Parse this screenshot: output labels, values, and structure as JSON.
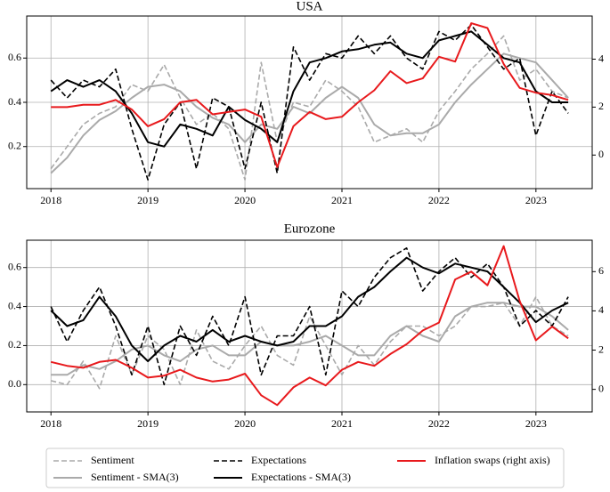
{
  "chart_data": [
    {
      "type": "line",
      "title": "USA",
      "x": [
        2018,
        2018.167,
        2018.333,
        2018.5,
        2018.667,
        2018.833,
        2019,
        2019.167,
        2019.333,
        2019.5,
        2019.667,
        2019.833,
        2020,
        2020.167,
        2020.333,
        2020.5,
        2020.667,
        2020.833,
        2021,
        2021.167,
        2021.333,
        2021.5,
        2021.667,
        2021.833,
        2022,
        2022.167,
        2022.333,
        2022.5,
        2022.667,
        2022.833,
        2023,
        2023.167,
        2023.333
      ],
      "series": [
        {
          "name": "Sentiment",
          "color": "#aaaaaa",
          "linestyle": "dashed",
          "values": [
            0.1,
            0.2,
            0.3,
            0.35,
            0.38,
            0.48,
            0.45,
            0.57,
            0.42,
            0.3,
            0.35,
            0.28,
            0.05,
            0.58,
            0.22,
            0.4,
            0.38,
            0.5,
            0.45,
            0.38,
            0.22,
            0.25,
            0.28,
            0.22,
            0.36,
            0.45,
            0.55,
            0.62,
            0.7,
            0.5,
            0.55,
            0.45,
            0.42
          ]
        },
        {
          "name": "Sentiment - SMA(3)",
          "color": "#aaaaaa",
          "linestyle": "solid",
          "values": [
            0.08,
            0.15,
            0.25,
            0.32,
            0.36,
            0.42,
            0.47,
            0.48,
            0.45,
            0.38,
            0.33,
            0.3,
            0.22,
            0.3,
            0.28,
            0.38,
            0.35,
            0.42,
            0.47,
            0.42,
            0.3,
            0.25,
            0.26,
            0.26,
            0.3,
            0.4,
            0.48,
            0.55,
            0.62,
            0.6,
            0.58,
            0.5,
            0.42
          ]
        },
        {
          "name": "Expectations",
          "color": "#000000",
          "linestyle": "dashed",
          "values": [
            0.5,
            0.42,
            0.5,
            0.47,
            0.55,
            0.28,
            0.05,
            0.3,
            0.4,
            0.1,
            0.42,
            0.38,
            0.1,
            0.4,
            0.08,
            0.65,
            0.5,
            0.62,
            0.6,
            0.7,
            0.62,
            0.7,
            0.6,
            0.55,
            0.72,
            0.68,
            0.75,
            0.65,
            0.55,
            0.6,
            0.25,
            0.45,
            0.35
          ]
        },
        {
          "name": "Expectations - SMA(3)",
          "color": "#000000",
          "linestyle": "solid",
          "values": [
            0.45,
            0.5,
            0.47,
            0.5,
            0.45,
            0.35,
            0.22,
            0.2,
            0.3,
            0.28,
            0.25,
            0.38,
            0.32,
            0.28,
            0.22,
            0.45,
            0.58,
            0.6,
            0.63,
            0.64,
            0.66,
            0.67,
            0.62,
            0.6,
            0.68,
            0.7,
            0.72,
            0.66,
            0.6,
            0.58,
            0.45,
            0.4,
            0.4
          ]
        },
        {
          "name": "Inflation swaps (right axis)",
          "color": "#e8191c",
          "linestyle": "solid",
          "axis": "y2",
          "values": [
            2.0,
            2.0,
            2.1,
            2.1,
            2.3,
            1.9,
            1.2,
            1.5,
            2.2,
            2.3,
            1.7,
            1.8,
            1.9,
            1.6,
            -0.5,
            1.2,
            1.8,
            1.5,
            1.6,
            2.2,
            2.7,
            3.5,
            3.0,
            3.2,
            4.1,
            3.9,
            5.5,
            5.3,
            3.8,
            2.8,
            2.6,
            2.5,
            2.3
          ]
        }
      ],
      "xlim": [
        2017.75,
        2023.58
      ],
      "xticks": [
        2018,
        2019,
        2020,
        2021,
        2022,
        2023
      ],
      "ylim": [
        0.01,
        0.79
      ],
      "yticks": [
        0.2,
        0.4,
        0.6
      ],
      "y2lim": [
        -1.4,
        5.8
      ],
      "y2ticks": [
        0,
        2,
        4
      ],
      "grid": true
    },
    {
      "type": "line",
      "title": "Eurozone",
      "x": [
        2018,
        2018.167,
        2018.333,
        2018.5,
        2018.667,
        2018.833,
        2019,
        2019.167,
        2019.333,
        2019.5,
        2019.667,
        2019.833,
        2020,
        2020.167,
        2020.333,
        2020.5,
        2020.667,
        2020.833,
        2021,
        2021.167,
        2021.333,
        2021.5,
        2021.667,
        2021.833,
        2022,
        2022.167,
        2022.333,
        2022.5,
        2022.667,
        2022.833,
        2023,
        2023.167,
        2023.333
      ],
      "series": [
        {
          "name": "Sentiment",
          "color": "#aaaaaa",
          "linestyle": "dashed",
          "values": [
            0.02,
            0.0,
            0.12,
            -0.02,
            0.25,
            0.05,
            0.25,
            0.18,
            0.0,
            0.28,
            0.12,
            0.08,
            0.2,
            0.3,
            0.15,
            0.1,
            0.35,
            0.2,
            0.05,
            0.2,
            0.1,
            0.22,
            0.3,
            0.3,
            0.25,
            0.3,
            0.4,
            0.4,
            0.42,
            0.3,
            0.45,
            0.3,
            0.25
          ]
        },
        {
          "name": "Sentiment - SMA(3)",
          "color": "#aaaaaa",
          "linestyle": "solid",
          "values": [
            0.05,
            0.05,
            0.1,
            0.08,
            0.12,
            0.18,
            0.2,
            0.15,
            0.12,
            0.18,
            0.2,
            0.15,
            0.15,
            0.22,
            0.2,
            0.2,
            0.22,
            0.25,
            0.2,
            0.15,
            0.15,
            0.25,
            0.3,
            0.25,
            0.22,
            0.35,
            0.4,
            0.42,
            0.42,
            0.4,
            0.4,
            0.35,
            0.28
          ]
        },
        {
          "name": "Expectations",
          "color": "#000000",
          "linestyle": "dashed",
          "values": [
            0.4,
            0.22,
            0.38,
            0.5,
            0.3,
            0.05,
            0.3,
            0.0,
            0.3,
            0.15,
            0.35,
            0.2,
            0.45,
            0.05,
            0.25,
            0.25,
            0.4,
            0.05,
            0.48,
            0.4,
            0.55,
            0.65,
            0.7,
            0.48,
            0.58,
            0.65,
            0.55,
            0.62,
            0.5,
            0.3,
            0.38,
            0.3,
            0.45
          ]
        },
        {
          "name": "Expectations - SMA(3)",
          "color": "#000000",
          "linestyle": "solid",
          "values": [
            0.38,
            0.3,
            0.33,
            0.45,
            0.35,
            0.2,
            0.12,
            0.2,
            0.25,
            0.22,
            0.28,
            0.22,
            0.25,
            0.22,
            0.2,
            0.22,
            0.3,
            0.3,
            0.35,
            0.45,
            0.5,
            0.58,
            0.65,
            0.6,
            0.57,
            0.62,
            0.6,
            0.58,
            0.5,
            0.42,
            0.32,
            0.38,
            0.42
          ]
        },
        {
          "name": "Inflation swaps (right axis)",
          "color": "#e8191c",
          "linestyle": "solid",
          "axis": "y2",
          "values": [
            1.4,
            1.2,
            1.1,
            1.4,
            1.5,
            1.1,
            0.6,
            0.7,
            1.0,
            0.6,
            0.4,
            0.5,
            0.8,
            -0.3,
            -0.8,
            0.1,
            0.6,
            0.2,
            1.0,
            1.4,
            1.2,
            1.8,
            2.3,
            3.0,
            3.4,
            5.6,
            6.0,
            5.3,
            7.3,
            4.5,
            2.5,
            3.2,
            2.6
          ]
        }
      ],
      "xlim": [
        2017.75,
        2023.58
      ],
      "xticks": [
        2018,
        2019,
        2020,
        2021,
        2022,
        2023
      ],
      "ylim": [
        -0.14,
        0.74
      ],
      "yticks": [
        {
          "value": 0,
          "label": "0.0"
        },
        0.2,
        0.4,
        0.6
      ],
      "y2lim": [
        -1.15,
        7.6
      ],
      "y2ticks": [
        0,
        2,
        4,
        6
      ],
      "grid": true,
      "legend": "bottom"
    }
  ]
}
